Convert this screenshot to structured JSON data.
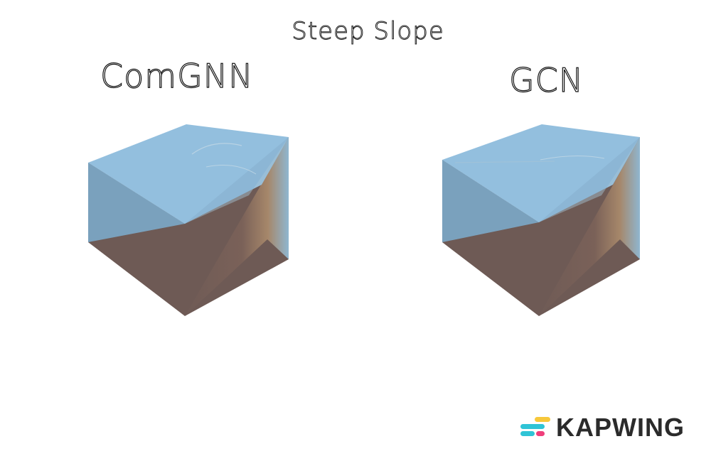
{
  "title": "Steep Slope",
  "panels": [
    {
      "label": "ComGNN"
    },
    {
      "label": "GCN"
    }
  ],
  "brand": {
    "name": "KAPWING"
  },
  "colors": {
    "water": "#7fb6d8",
    "terrain": "#6e5a55",
    "brand_yellow": "#f7c83b",
    "brand_teal": "#2fc4d6",
    "brand_pink": "#ef3f7b"
  }
}
